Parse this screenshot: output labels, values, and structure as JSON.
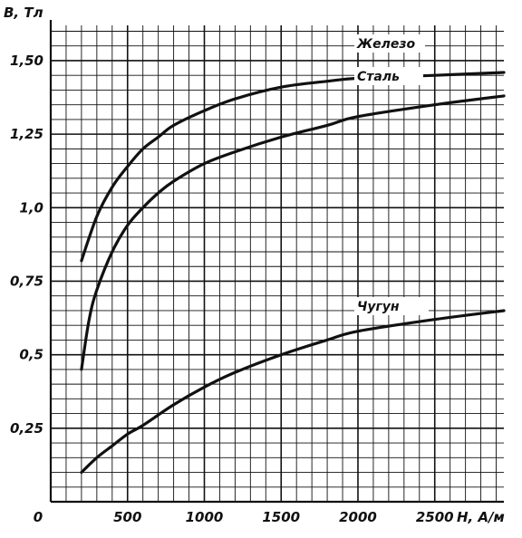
{
  "chart_data": {
    "type": "line",
    "xlabel": "H, А/м",
    "ylabel": "B, Тл",
    "xlim": [
      0,
      2950
    ],
    "ylim": [
      0,
      1.62
    ],
    "grid": true,
    "x_ticks": [
      {
        "value": 0,
        "label": "0"
      },
      {
        "value": 500,
        "label": "500"
      },
      {
        "value": 1000,
        "label": "1000"
      },
      {
        "value": 1500,
        "label": "1500"
      },
      {
        "value": 2000,
        "label": "2000"
      },
      {
        "value": 2500,
        "label": "2500"
      }
    ],
    "y_ticks": [
      {
        "value": 0.25,
        "label": "0,25"
      },
      {
        "value": 0.5,
        "label": "0,5"
      },
      {
        "value": 0.75,
        "label": "0,75"
      },
      {
        "value": 1.0,
        "label": "1,0"
      },
      {
        "value": 1.25,
        "label": "1,25"
      },
      {
        "value": 1.5,
        "label": "1,50"
      }
    ],
    "series": [
      {
        "name": "Железо",
        "x": [
          200,
          300,
          400,
          500,
          600,
          700,
          800,
          1000,
          1200,
          1500,
          1800,
          2000,
          2500,
          2950
        ],
        "y": [
          0.82,
          0.97,
          1.07,
          1.14,
          1.2,
          1.24,
          1.28,
          1.33,
          1.37,
          1.41,
          1.43,
          1.44,
          1.45,
          1.46
        ]
      },
      {
        "name": "Сталь",
        "x": [
          200,
          250,
          300,
          400,
          500,
          600,
          700,
          800,
          1000,
          1200,
          1500,
          1800,
          2000,
          2500,
          2950
        ],
        "y": [
          0.45,
          0.62,
          0.72,
          0.85,
          0.94,
          1.0,
          1.05,
          1.09,
          1.15,
          1.19,
          1.24,
          1.28,
          1.31,
          1.35,
          1.38
        ]
      },
      {
        "name": "Чугун",
        "x": [
          200,
          300,
          400,
          500,
          600,
          800,
          1000,
          1200,
          1500,
          1800,
          2000,
          2500,
          2950
        ],
        "y": [
          0.1,
          0.15,
          0.19,
          0.23,
          0.26,
          0.33,
          0.39,
          0.44,
          0.5,
          0.55,
          0.58,
          0.62,
          0.65
        ]
      }
    ]
  }
}
